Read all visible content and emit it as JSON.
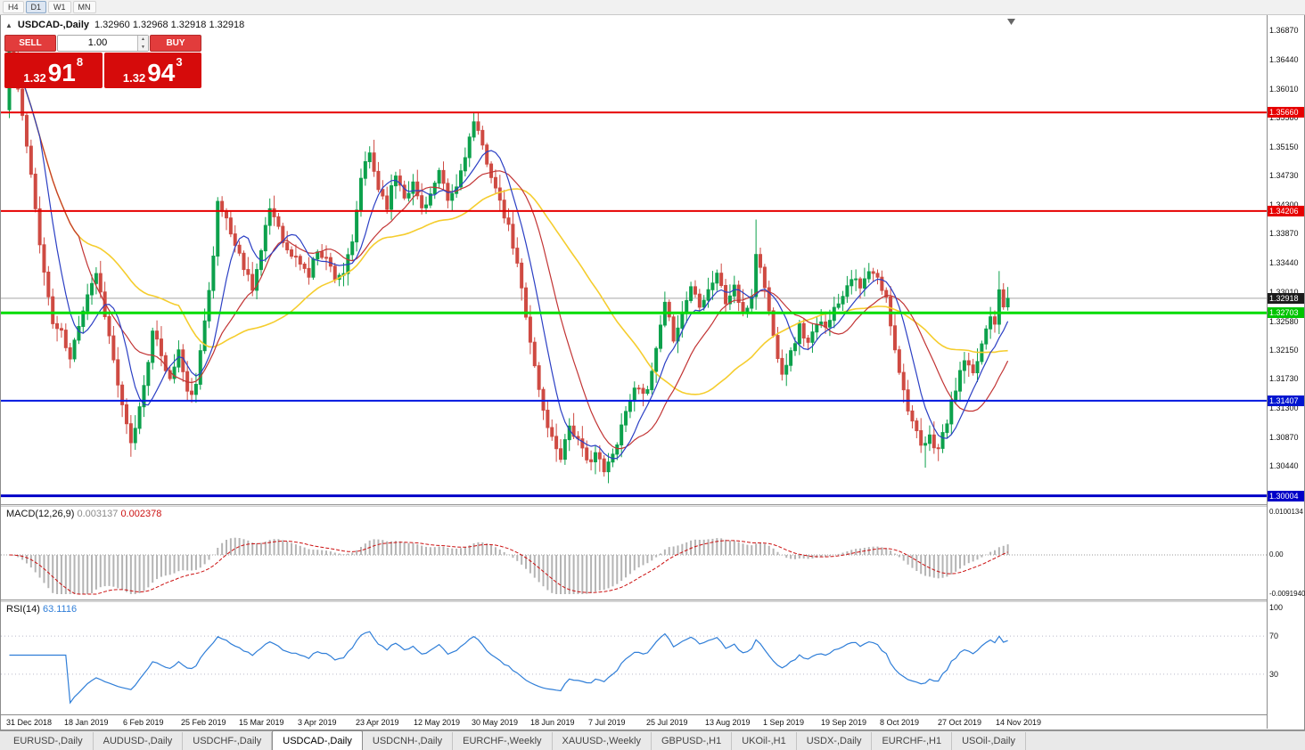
{
  "toolbar": {
    "timeframes": [
      "H4",
      "D1",
      "W1",
      "MN"
    ],
    "active": "D1"
  },
  "icons": {
    "collapse": "▲",
    "spin_up": "▲",
    "spin_down": "▼"
  },
  "chart": {
    "title_symbol": "USDCAD-,Daily",
    "title_quotes": "1.32960 1.32968 1.32918 1.32918"
  },
  "one_click": {
    "sell_label": "SELL",
    "buy_label": "BUY",
    "lot_value": "1.00",
    "sell_price": {
      "big": "1.32",
      "large": "91",
      "sup": "8"
    },
    "buy_price": {
      "big": "1.32",
      "large": "94",
      "sup": "3"
    }
  },
  "colors": {
    "up": "#0da14c",
    "down": "#cf4a42",
    "ma_fast": "#2b3fc4",
    "ma_mid": "#c23434",
    "ma_slow": "#f5cd2e",
    "macd_hist": "#b4b4b4",
    "macd_signal": "#cc1111",
    "rsi_line": "#2f7ed8",
    "current_line": "#a8a8a8"
  },
  "price_axis": {
    "ticks": [
      "1.36870",
      "1.36440",
      "1.36010",
      "1.35580",
      "1.35150",
      "1.34730",
      "1.34300",
      "1.33870",
      "1.33440",
      "1.33010",
      "1.32580",
      "1.32150",
      "1.31730",
      "1.31300",
      "1.30870",
      "1.30440"
    ]
  },
  "levels": [
    {
      "price": 1.3566,
      "label": "1.35660",
      "line": "#e60000",
      "tag": "#e60000",
      "width": 2
    },
    {
      "price": 1.34206,
      "label": "1.34206",
      "line": "#e60000",
      "tag": "#e60000",
      "width": 2
    },
    {
      "price": 1.32918,
      "label": "1.32918",
      "line": "#a8a8a8",
      "tag": "#1c1c1c",
      "width": 1,
      "behind": true
    },
    {
      "price": 1.32703,
      "label": "1.32703",
      "line": "#00dc00",
      "tag": "#00c400",
      "width": 3
    },
    {
      "price": 1.31407,
      "label": "1.31407",
      "line": "#0016e0",
      "tag": "#0016d0",
      "width": 2
    },
    {
      "price": 1.30004,
      "label": "1.30004",
      "line": "#0000c8",
      "tag": "#0000c8",
      "width": 3
    }
  ],
  "macd": {
    "label": "MACD(12,26,9)",
    "value1": "0.003137",
    "value2": "0.002378",
    "axis": [
      "0.0100134",
      "0.00",
      "-0.0091940"
    ]
  },
  "rsi": {
    "label": "RSI(14)",
    "value": "63.1116",
    "axis": [
      "100",
      "70",
      "30"
    ],
    "levels": [
      70,
      30
    ]
  },
  "dates": [
    "31 Dec 2018",
    "18 Jan 2019",
    "6 Feb 2019",
    "25 Feb 2019",
    "15 Mar 2019",
    "3 Apr 2019",
    "23 Apr 2019",
    "12 May 2019",
    "30 May 2019",
    "18 Jun 2019",
    "7 Jul 2019",
    "25 Jul 2019",
    "13 Aug 2019",
    "1 Sep 2019",
    "19 Sep 2019",
    "8 Oct 2019",
    "27 Oct 2019",
    "14 Nov 2019"
  ],
  "tabs": {
    "items": [
      "EURUSD-,Daily",
      "AUDUSD-,Daily",
      "USDCHF-,Daily",
      "USDCAD-,Daily",
      "USDCNH-,Daily",
      "EURCHF-,Weekly",
      "XAUUSD-,Weekly",
      "GBPUSD-,H1",
      "UKOil-,H1",
      "USDX-,Daily",
      "EURCHF-,H1",
      "USOil-,Daily"
    ],
    "active": "USDCAD-,Daily"
  },
  "chart_data": {
    "type": "candlestick",
    "symbol": "USDCAD-",
    "timeframe": "Daily",
    "candle_count": 231,
    "current_price": 1.32918,
    "y_range": [
      1.299,
      1.371
    ],
    "indicators": {
      "sma_periods": [
        8,
        17,
        40
      ],
      "macd_params": [
        12,
        26,
        9
      ],
      "rsi_params": [
        14
      ]
    },
    "price_anchors": [
      [
        0,
        1.3655
      ],
      [
        1,
        1.364
      ],
      [
        3,
        1.356
      ],
      [
        5,
        1.347
      ],
      [
        8,
        1.333
      ],
      [
        10,
        1.3255
      ],
      [
        12,
        1.324
      ],
      [
        14,
        1.32
      ],
      [
        16,
        1.3255
      ],
      [
        18,
        1.33
      ],
      [
        20,
        1.333
      ],
      [
        22,
        1.327
      ],
      [
        24,
        1.32
      ],
      [
        26,
        1.313
      ],
      [
        28,
        1.3075
      ],
      [
        30,
        1.313
      ],
      [
        33,
        1.324
      ],
      [
        35,
        1.321
      ],
      [
        37,
        1.317
      ],
      [
        39,
        1.3215
      ],
      [
        41,
        1.315
      ],
      [
        43,
        1.316
      ],
      [
        45,
        1.326
      ],
      [
        47,
        1.336
      ],
      [
        48,
        1.343
      ],
      [
        50,
        1.341
      ],
      [
        52,
        1.337
      ],
      [
        54,
        1.334
      ],
      [
        56,
        1.331
      ],
      [
        58,
        1.336
      ],
      [
        60,
        1.3425
      ],
      [
        62,
        1.34
      ],
      [
        64,
        1.336
      ],
      [
        67,
        1.3345
      ],
      [
        69,
        1.3325
      ],
      [
        71,
        1.3365
      ],
      [
        73,
        1.335
      ],
      [
        75,
        1.3325
      ],
      [
        77,
        1.333
      ],
      [
        79,
        1.337
      ],
      [
        81,
        1.347
      ],
      [
        83,
        1.3505
      ],
      [
        85,
        1.3455
      ],
      [
        87,
        1.343
      ],
      [
        89,
        1.3475
      ],
      [
        91,
        1.3445
      ],
      [
        93,
        1.346
      ],
      [
        95,
        1.3425
      ],
      [
        97,
        1.3445
      ],
      [
        99,
        1.3475
      ],
      [
        101,
        1.3435
      ],
      [
        103,
        1.3455
      ],
      [
        105,
        1.3505
      ],
      [
        107,
        1.355
      ],
      [
        109,
        1.3515
      ],
      [
        111,
        1.3475
      ],
      [
        113,
        1.343
      ],
      [
        115,
        1.3395
      ],
      [
        117,
        1.334
      ],
      [
        119,
        1.327
      ],
      [
        121,
        1.319
      ],
      [
        123,
        1.3125
      ],
      [
        125,
        1.3085
      ],
      [
        127,
        1.306
      ],
      [
        129,
        1.3105
      ],
      [
        131,
        1.308
      ],
      [
        133,
        1.305
      ],
      [
        135,
        1.3065
      ],
      [
        137,
        1.3035
      ],
      [
        139,
        1.306
      ],
      [
        141,
        1.3105
      ],
      [
        143,
        1.3145
      ],
      [
        145,
        1.3165
      ],
      [
        147,
        1.315
      ],
      [
        149,
        1.3215
      ],
      [
        151,
        1.328
      ],
      [
        153,
        1.3235
      ],
      [
        155,
        1.327
      ],
      [
        157,
        1.331
      ],
      [
        159,
        1.3285
      ],
      [
        161,
        1.3305
      ],
      [
        163,
        1.333
      ],
      [
        165,
        1.3285
      ],
      [
        167,
        1.331
      ],
      [
        169,
        1.3265
      ],
      [
        171,
        1.3295
      ],
      [
        172,
        1.336
      ],
      [
        174,
        1.331
      ],
      [
        176,
        1.3235
      ],
      [
        178,
        1.3185
      ],
      [
        180,
        1.321
      ],
      [
        182,
        1.325
      ],
      [
        184,
        1.3225
      ],
      [
        186,
        1.325
      ],
      [
        188,
        1.3255
      ],
      [
        190,
        1.3275
      ],
      [
        192,
        1.33
      ],
      [
        194,
        1.3325
      ],
      [
        196,
        1.3305
      ],
      [
        198,
        1.333
      ],
      [
        200,
        1.332
      ],
      [
        202,
        1.329
      ],
      [
        204,
        1.322
      ],
      [
        206,
        1.3155
      ],
      [
        208,
        1.311
      ],
      [
        210,
        1.307
      ],
      [
        212,
        1.3085
      ],
      [
        214,
        1.307
      ],
      [
        216,
        1.311
      ],
      [
        218,
        1.316
      ],
      [
        220,
        1.32
      ],
      [
        222,
        1.3175
      ],
      [
        224,
        1.3225
      ],
      [
        226,
        1.327
      ],
      [
        227,
        1.3258
      ],
      [
        228,
        1.331
      ],
      [
        229,
        1.3285
      ],
      [
        230,
        1.32918
      ]
    ],
    "forced_highs": [
      [
        0,
        1.3662
      ],
      [
        107,
        1.35655
      ],
      [
        172,
        1.3408
      ],
      [
        228,
        1.3332
      ]
    ],
    "forced_lows": [
      [
        28,
        1.3058
      ],
      [
        138,
        1.3019
      ],
      [
        211,
        1.3042
      ]
    ]
  }
}
